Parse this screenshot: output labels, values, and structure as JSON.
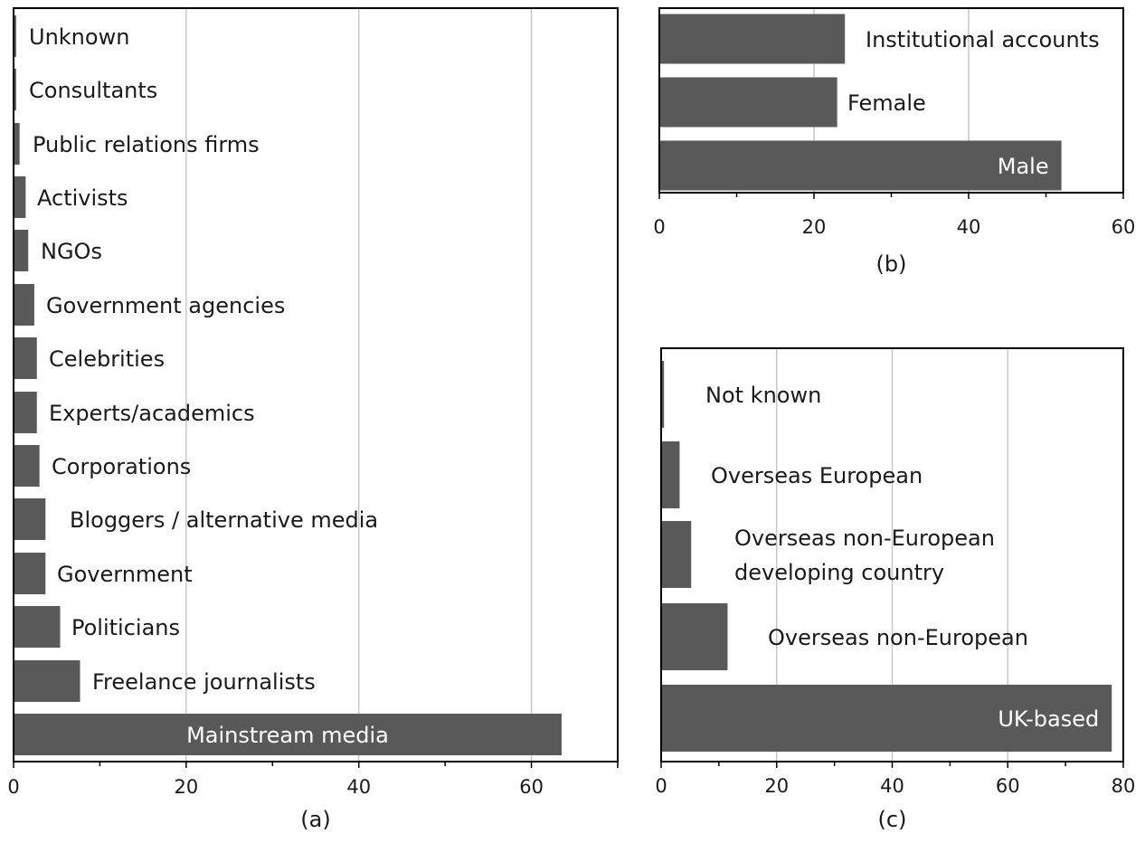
{
  "chart_data": [
    {
      "type": "bar",
      "orientation": "horizontal",
      "caption": "(a)",
      "categories": [
        "Mainstream media",
        "Freelance journalists",
        "Politicians",
        "Government",
        "Bloggers / alternative media",
        "Corporations",
        "Experts/academics",
        "Celebrities",
        "Government agencies",
        "NGOs",
        "Activists",
        "Public relations firms",
        "Consultants",
        "Unknown"
      ],
      "values": [
        63.5,
        7.7,
        5.4,
        3.7,
        3.7,
        3.0,
        2.7,
        2.7,
        2.4,
        1.7,
        1.4,
        0.7,
        0.3,
        0.3
      ],
      "xlim": [
        0,
        70
      ],
      "xticks": [
        "0",
        "20",
        "40",
        "60"
      ],
      "label_inside": [
        true,
        false,
        false,
        false,
        false,
        false,
        false,
        false,
        false,
        false,
        false,
        false,
        false,
        false
      ],
      "grid": true
    },
    {
      "type": "bar",
      "orientation": "horizontal",
      "caption": "(b)",
      "categories": [
        "Male",
        "Female",
        "Institutional accounts"
      ],
      "values": [
        52,
        23,
        24
      ],
      "xlim": [
        0,
        60
      ],
      "xticks": [
        "0",
        "20",
        "40",
        "60"
      ],
      "label_inside": [
        true,
        false,
        false
      ],
      "grid": true
    },
    {
      "type": "bar",
      "orientation": "horizontal",
      "caption": "(c)",
      "categories": [
        "UK-based",
        "Overseas non-European",
        "Overseas non-European developing country",
        "Overseas European",
        "Not known"
      ],
      "label_lines": [
        [
          "UK-based"
        ],
        [
          "Overseas non-European"
        ],
        [
          "Overseas non-European",
          "developing country"
        ],
        [
          "Overseas European"
        ],
        [
          "Not known"
        ]
      ],
      "values": [
        78,
        11.5,
        5.2,
        3.2,
        0.5
      ],
      "xlim": [
        0,
        80
      ],
      "xticks": [
        "0",
        "20",
        "40",
        "60",
        "80"
      ],
      "label_inside": [
        true,
        false,
        false,
        false,
        false
      ],
      "grid": true
    }
  ]
}
